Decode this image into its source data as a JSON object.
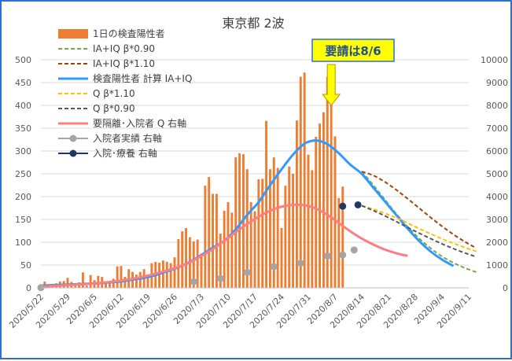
{
  "chart_data": {
    "type": "bar",
    "title": "東京都 2波",
    "x_ticks": [
      "2020/5/22",
      "2020/5/29",
      "2020/6/5",
      "2020/6/12",
      "2020/6/19",
      "2020/6/26",
      "2020/7/3",
      "2020/7/10",
      "2020/7/17",
      "2020/7/24",
      "2020/7/31",
      "2020/8/7",
      "2020/8/14",
      "2020/8/21",
      "2020/8/28",
      "2020/9/4",
      "2020/9/11"
    ],
    "y_left": {
      "min": 0,
      "max": 500,
      "ticks": [
        "0",
        "50",
        "100",
        "150",
        "200",
        "250",
        "300",
        "350",
        "400",
        "450",
        "500"
      ]
    },
    "y_right": {
      "min": 0,
      "max": 10000,
      "ticks": [
        "0",
        "1000",
        "2000",
        "3000",
        "4000",
        "5000",
        "6000",
        "7000",
        "8000",
        "9000",
        "10000"
      ]
    },
    "grid": true,
    "legend_position": "top-left",
    "annotation": {
      "text": "要請は8/6",
      "x": "2020/8/6"
    },
    "series": [
      {
        "key": "bars",
        "name": "1日の検査陽性者",
        "type": "bar",
        "axis": "left",
        "color": "#ed7d31",
        "start": "2020/5/22",
        "values": [
          5,
          14,
          3,
          7,
          10,
          14,
          15,
          22,
          13,
          8,
          12,
          34,
          5,
          28,
          17,
          26,
          24,
          13,
          12,
          20,
          47,
          48,
          24,
          41,
          35,
          29,
          35,
          41,
          26,
          54,
          57,
          55,
          60,
          57,
          54,
          67,
          107,
          124,
          131,
          111,
          102,
          106,
          75,
          224,
          243,
          206,
          206,
          119,
          169,
          188,
          165,
          286,
          295,
          293,
          260,
          188,
          168,
          238,
          239,
          366,
          260,
          286,
          263,
          131,
          224,
          266,
          250,
          367,
          463,
          472,
          292,
          258,
          331,
          360,
          385,
          462,
          429,
          332,
          197,
          222
        ]
      },
      {
        "key": "ia_low",
        "name": "IA+IQ β*0.90",
        "type": "line",
        "axis": "right",
        "color": "#70ad47",
        "dash": "5,3",
        "start": "2020/8/14",
        "values": [
          5100,
          4510,
          3880,
          3250,
          2680,
          2170,
          1740,
          1380,
          1100,
          870,
          690
        ]
      },
      {
        "key": "ia_high",
        "name": "IA+IQ β*1.10",
        "type": "line",
        "axis": "right",
        "color": "#9e480e",
        "dash": "5,3",
        "start": "2020/8/14",
        "values": [
          5100,
          4930,
          4650,
          4300,
          3910,
          3500,
          3090,
          2700,
          2340,
          2020,
          1740
        ]
      },
      {
        "key": "calc",
        "name": "検査陽性者 計算 IA+IQ",
        "type": "line",
        "axis": "left",
        "color": "#3399ff",
        "width": 3,
        "start": "2020/5/22",
        "values": [
          5,
          6,
          7,
          8,
          9,
          10,
          12,
          14,
          18,
          22,
          28,
          36,
          45,
          57,
          72,
          88,
          103,
          128,
          160,
          188,
          225,
          260,
          292,
          316,
          323,
          315,
          295,
          270,
          250,
          220,
          190,
          160,
          130,
          103,
          80,
          62,
          48
        ]
      },
      {
        "key": "q_high",
        "name": "Q β*1.10",
        "type": "line",
        "axis": "right",
        "color": "#ffc000",
        "dash": "5,3",
        "start": "2020/8/14",
        "values": [
          3600,
          3450,
          3270,
          3070,
          2840,
          2600,
          2370,
          2150,
          1950,
          1770,
          1600
        ]
      },
      {
        "key": "q_low",
        "name": "Q β*0.90",
        "type": "line",
        "axis": "right",
        "color": "#595959",
        "dash": "5,3",
        "start": "2020/8/14",
        "values": [
          3600,
          3390,
          3160,
          2910,
          2650,
          2400,
          2160,
          1930,
          1720,
          1530,
          1360
        ]
      },
      {
        "key": "quar",
        "name": "要隔離･入院者 Q 右軸",
        "type": "line",
        "axis": "right",
        "color": "#ff7c80",
        "width": 3,
        "start": "2020/5/22",
        "values": [
          50,
          80,
          110,
          140,
          170,
          210,
          260,
          320,
          400,
          500,
          620,
          760,
          920,
          1120,
          1400,
          1700,
          2060,
          2440,
          2800,
          3120,
          3380,
          3560,
          3640,
          3620,
          3480,
          3200,
          2840,
          2480,
          2160,
          1900,
          1680,
          1520,
          1400
        ]
      },
      {
        "key": "hosp",
        "name": "入院者実績 右軸",
        "type": "markers",
        "axis": "right",
        "color": "#a5a5a5",
        "marker": "circle",
        "points": [
          [
            "2020/5/22",
            10
          ],
          [
            "2020/7/1",
            270
          ],
          [
            "2020/7/8",
            410
          ],
          [
            "2020/7/15",
            680
          ],
          [
            "2020/7/22",
            930
          ],
          [
            "2020/7/29",
            1080
          ],
          [
            "2020/8/5",
            1400
          ],
          [
            "2020/8/9",
            1440
          ],
          [
            "2020/8/12",
            1660
          ]
        ]
      },
      {
        "key": "rest",
        "name": "入院･療養 右軸",
        "type": "markers",
        "axis": "right",
        "color": "#1f3864",
        "marker": "circle",
        "points": [
          [
            "2020/8/9",
            3580
          ],
          [
            "2020/8/13",
            3640
          ]
        ]
      }
    ]
  }
}
